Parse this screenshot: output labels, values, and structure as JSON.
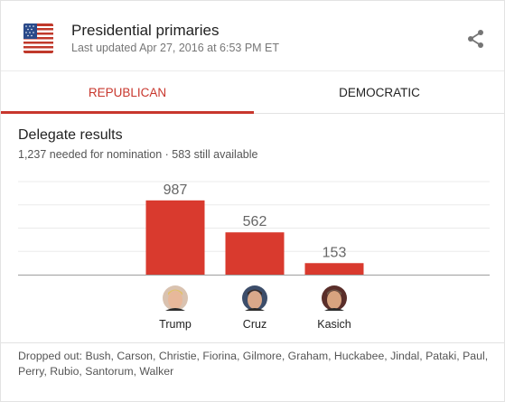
{
  "header": {
    "title": "Presidential primaries",
    "last_updated": "Last updated Apr 27, 2016 at 6:53 PM ET",
    "flag_icon": "us-flag-icon",
    "share_icon": "share-icon"
  },
  "tabs": [
    {
      "label": "REPUBLICAN",
      "active": true
    },
    {
      "label": "DEMOCRATIC",
      "active": false
    }
  ],
  "results": {
    "title": "Delegate results",
    "subtitle": "1,237 needed for nomination · 583 still available"
  },
  "colors": {
    "accent": "#c8372d",
    "bar": "#d93a2e",
    "grid": "#ebebeb",
    "baseline": "#9e9e9e"
  },
  "chart_data": {
    "type": "bar",
    "categories": [
      "Trump",
      "Cruz",
      "Kasich"
    ],
    "values": [
      987,
      562,
      153
    ],
    "data_labels": [
      "987",
      "562",
      "153"
    ],
    "ylim": [
      0,
      1237
    ],
    "grid": true
  },
  "footer": {
    "dropped_out": "Dropped out: Bush, Carson, Christie, Fiorina, Gilmore, Graham, Huckabee, Jindal, Pataki, Paul, Perry, Rubio, Santorum, Walker"
  }
}
